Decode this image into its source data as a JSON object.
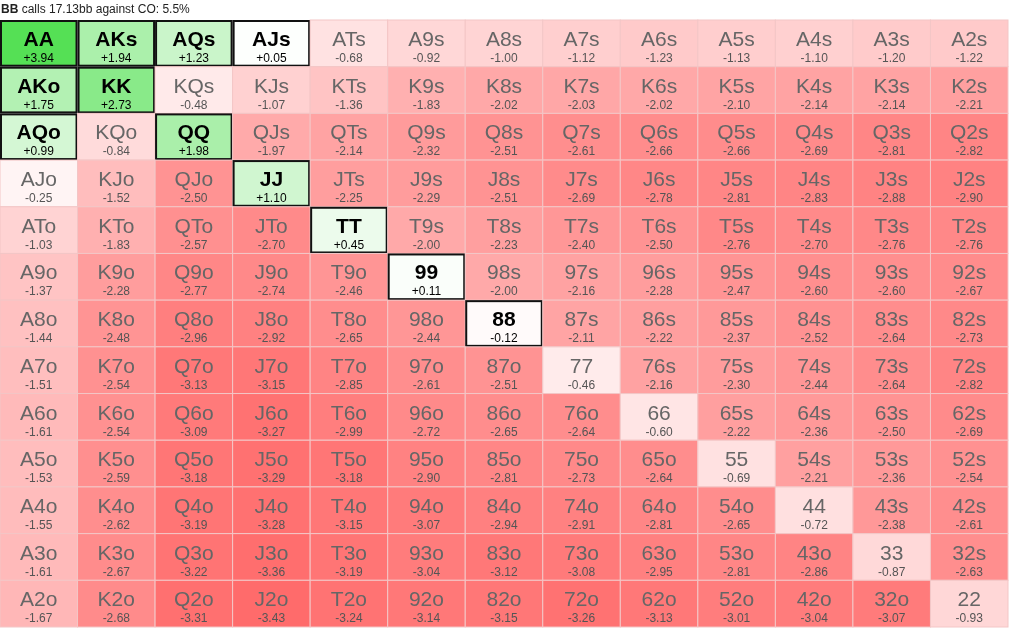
{
  "chart_data": {
    "type": "heatmap",
    "title": "BB calls 17.13bb against CO: 5.5%",
    "categories": [
      null,
      null,
      null,
      null,
      null,
      null,
      null,
      null,
      null,
      null,
      null,
      null,
      null
    ],
    "y_categories": [
      null,
      null,
      null,
      null,
      null,
      null,
      null,
      null,
      null,
      null,
      null,
      null,
      null
    ],
    "colors": [
      "#ff6b6b",
      "#ffffff",
      "#55e055"
    ],
    "cells": [
      [
        3.94,
        1.94,
        1.23,
        0.05,
        -0.68,
        -0.92,
        -1.0,
        -1.12,
        -1.23,
        -1.13,
        -1.1,
        -1.2,
        -1.22
      ],
      [
        1.75,
        2.73,
        -0.48,
        -1.07,
        -1.36,
        -1.83,
        -2.02,
        -2.03,
        -2.02,
        -2.1,
        -2.14,
        -2.14,
        -2.21
      ],
      [
        0.99,
        -0.84,
        1.98,
        -1.97,
        -2.14,
        -2.32,
        -2.51,
        -2.61,
        -2.66,
        -2.66,
        -2.69,
        -2.81,
        -2.82
      ],
      [
        -0.25,
        -1.52,
        -2.5,
        1.1,
        -2.25,
        -2.29,
        -2.51,
        -2.69,
        -2.78,
        -2.81,
        -2.83,
        -2.88,
        -2.9
      ],
      [
        -1.03,
        -1.83,
        -2.57,
        -2.7,
        0.45,
        -2.0,
        -2.23,
        -2.4,
        -2.5,
        -2.76,
        -2.7,
        -2.76,
        -2.76
      ],
      [
        -1.37,
        -2.28,
        -2.77,
        -2.74,
        -2.46,
        0.11,
        -2.0,
        -2.16,
        -2.28,
        -2.47,
        -2.6,
        -2.6,
        -2.67
      ],
      [
        -1.44,
        -2.48,
        -2.96,
        -2.92,
        -2.65,
        -2.44,
        -0.12,
        -2.11,
        -2.22,
        -2.37,
        -2.52,
        -2.64,
        -2.73
      ],
      [
        -1.51,
        -2.54,
        -3.13,
        -3.15,
        -2.85,
        -2.61,
        -2.51,
        -0.46,
        -2.16,
        -2.3,
        -2.44,
        -2.64,
        -2.82
      ],
      [
        -1.61,
        -2.54,
        -3.09,
        -3.27,
        -2.99,
        -2.72,
        -2.65,
        -2.64,
        -0.6,
        -2.22,
        -2.36,
        -2.5,
        -2.69
      ],
      [
        -1.53,
        -2.59,
        -3.18,
        -3.29,
        -3.18,
        -2.9,
        -2.81,
        -2.73,
        -2.64,
        -0.69,
        -2.21,
        -2.36,
        -2.54
      ],
      [
        -1.55,
        -2.62,
        -3.19,
        -3.28,
        -3.15,
        -3.07,
        -2.94,
        -2.91,
        -2.81,
        -2.65,
        -0.72,
        -2.38,
        -2.61
      ],
      [
        -1.61,
        -2.67,
        -3.22,
        -3.36,
        -3.19,
        -3.04,
        -3.12,
        -3.08,
        -2.95,
        -2.81,
        -2.86,
        -0.87,
        -2.63
      ],
      [
        -1.67,
        -2.68,
        -3.31,
        -3.43,
        -3.24,
        -3.14,
        -3.15,
        -3.26,
        -3.13,
        -3.01,
        -3.04,
        -3.07,
        -0.93
      ]
    ],
    "cell_labels": [
      [
        "+3.94",
        "+1.94",
        "+1.23",
        "+0.05",
        "-0.68",
        "-0.92",
        "-1.00",
        "-1.12",
        "-1.23",
        "-1.13",
        "-1.10",
        "-1.20",
        "-1.22"
      ],
      [
        "+1.75",
        "+2.73",
        "-0.48",
        "-1.07",
        "-1.36",
        "-1.83",
        "-2.02",
        "-2.03",
        "-2.02",
        "-2.10",
        "-2.14",
        "-2.14",
        "-2.21"
      ],
      [
        "+0.99",
        "-0.84",
        "+1.98",
        "-1.97",
        "-2.14",
        "-2.32",
        "-2.51",
        "-2.61",
        "-2.66",
        "-2.66",
        "-2.69",
        "-2.81",
        "-2.82"
      ],
      [
        "-0.25",
        "-1.52",
        "-2.50",
        "+1.10",
        "-2.25",
        "-2.29",
        "-2.51",
        "-2.69",
        "-2.78",
        "-2.81",
        "-2.83",
        "-2.88",
        "-2.90"
      ],
      [
        "-1.03",
        "-1.83",
        "-2.57",
        "-2.70",
        "+0.45",
        "-2.00",
        "-2.23",
        "-2.40",
        "-2.50",
        "-2.76",
        "-2.70",
        "-2.76",
        "-2.76"
      ],
      [
        "-1.37",
        "-2.28",
        "-2.77",
        "-2.74",
        "-2.46",
        "+0.11",
        "-2.00",
        "-2.16",
        "-2.28",
        "-2.47",
        "-2.60",
        "-2.60",
        "-2.67"
      ],
      [
        "-1.44",
        "-2.48",
        "-2.96",
        "-2.92",
        "-2.65",
        "-2.44",
        "-0.12",
        "-2.11",
        "-2.22",
        "-2.37",
        "-2.52",
        "-2.64",
        "-2.73"
      ],
      [
        "-1.51",
        "-2.54",
        "-3.13",
        "-3.15",
        "-2.85",
        "-2.61",
        "-2.51",
        "-0.46",
        "-2.16",
        "-2.30",
        "-2.44",
        "-2.64",
        "-2.82"
      ],
      [
        "-1.61",
        "-2.54",
        "-3.09",
        "-3.27",
        "-2.99",
        "-2.72",
        "-2.65",
        "-2.64",
        "-0.60",
        "-2.22",
        "-2.36",
        "-2.50",
        "-2.69"
      ],
      [
        "-1.53",
        "-2.59",
        "-3.18",
        "-3.29",
        "-3.18",
        "-2.90",
        "-2.81",
        "-2.73",
        "-2.64",
        "-0.69",
        "-2.21",
        "-2.36",
        "-2.54"
      ],
      [
        "-1.55",
        "-2.62",
        "-3.19",
        "-3.28",
        "-3.15",
        "-3.07",
        "-2.94",
        "-2.91",
        "-2.81",
        "-2.65",
        "-0.72",
        "-2.38",
        "-2.61"
      ],
      [
        "-1.61",
        "-2.67",
        "-3.22",
        "-3.36",
        "-3.19",
        "-3.04",
        "-3.12",
        "-3.08",
        "-2.95",
        "-2.81",
        "-2.86",
        "-0.87",
        "-2.63"
      ],
      [
        "-1.67",
        "-2.68",
        "-3.31",
        "-3.43",
        "-3.24",
        "-3.14",
        "-3.15",
        "-3.26",
        "-3.13",
        "-3.01",
        "-3.04",
        "-3.07",
        "-0.93"
      ]
    ],
    "annotations": [
      "AA",
      "AKs",
      "AQs",
      "AJs",
      "ATs",
      "A9s",
      "A8s",
      "A7s",
      "A6s",
      "A5s",
      "A4s",
      "A3s",
      "A2s",
      "AKo",
      "KK",
      "KQs",
      "KJs",
      "KTs",
      "K9s",
      "K8s",
      "K7s",
      "K6s",
      "K5s",
      "K4s",
      "K3s",
      "K2s",
      "AQo",
      "KQo",
      "QQ",
      "QJs",
      "QTs",
      "Q9s",
      "Q8s",
      "Q7s",
      "Q6s",
      "Q5s",
      "Q4s",
      "Q3s",
      "Q2s",
      "AJo",
      "KJo",
      "QJo",
      "JJ",
      "JTs",
      "J9s",
      "J8s",
      "J7s",
      "J6s",
      "J5s",
      "J4s",
      "J3s",
      "J2s",
      "ATo",
      "KTo",
      "QTo",
      "JTo",
      "TT",
      "T9s",
      "T8s",
      "T7s",
      "T6s",
      "T5s",
      "T4s",
      "T3s",
      "T2s",
      "A9o",
      "K9o",
      "Q9o",
      "J9o",
      "T9o",
      "99",
      "98s",
      "97s",
      "96s",
      "95s",
      "94s",
      "93s",
      "92s",
      "A8o",
      "K8o",
      "Q8o",
      "J8o",
      "T8o",
      "98o",
      "88",
      "87s",
      "86s",
      "85s",
      "84s",
      "83s",
      "82s",
      "A7o",
      "K7o",
      "Q7o",
      "J7o",
      "T7o",
      "97o",
      "87o",
      "77",
      "76s",
      "75s",
      "74s",
      "73s",
      "72s",
      "A6o",
      "K6o",
      "Q6o",
      "J6o",
      "T6o",
      "96o",
      "86o",
      "76o",
      "66",
      "65s",
      "64s",
      "63s",
      "62s",
      "A5o",
      "K5o",
      "Q5o",
      "J5o",
      "T5o",
      "95o",
      "85o",
      "75o",
      "65o",
      "55",
      "54s",
      "53s",
      "52s",
      "A4o",
      "K4o",
      "Q4o",
      "J4o",
      "T4o",
      "94o",
      "84o",
      "74o",
      "64o",
      "54o",
      "44",
      "43s",
      "42s",
      "A3o",
      "K3o",
      "Q3o",
      "J3o",
      "T3o",
      "93o",
      "83o",
      "73o",
      "63o",
      "53o",
      "43o",
      "33",
      "32s",
      "A2o",
      "K2o",
      "Q2o",
      "J2o",
      "T2o",
      "92o",
      "82o",
      "72o",
      "62o",
      "52o",
      "42o",
      "32o",
      "22"
    ]
  }
}
